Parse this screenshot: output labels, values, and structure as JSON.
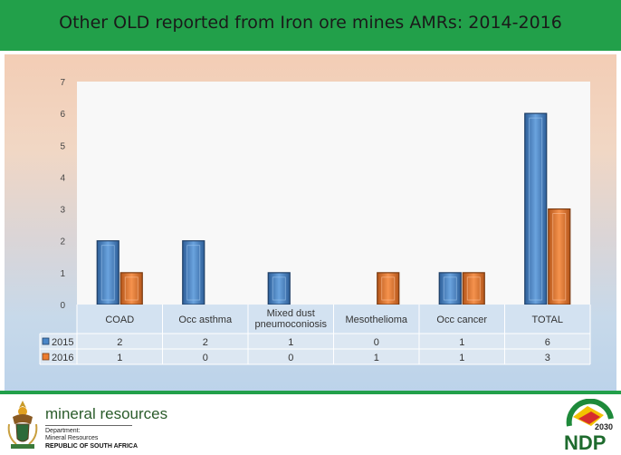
{
  "slide": {
    "title": "Other OLD reported from Iron ore mines AMRs: 2014-2016"
  },
  "chart_data": {
    "type": "bar",
    "title": "Other OLD reported from Iron ore mines AMRs: 2014-2016",
    "categories": [
      "COAD",
      "Occ asthma",
      "Mixed dust pneumoconiosis",
      "Mesothelioma",
      "Occ cancer",
      "TOTAL"
    ],
    "category_lines": [
      [
        "COAD"
      ],
      [
        "Occ asthma"
      ],
      [
        "Mixed dust",
        "pneumoconiosis"
      ],
      [
        "Mesothelioma"
      ],
      [
        "Occ cancer"
      ],
      [
        "TOTAL"
      ]
    ],
    "series": [
      {
        "name": "2015",
        "values": [
          2,
          2,
          1,
          0,
          1,
          6
        ],
        "color": "#4a86c8"
      },
      {
        "name": "2016",
        "values": [
          1,
          0,
          0,
          1,
          1,
          3
        ],
        "color": "#ed7d31"
      }
    ],
    "ylim": [
      0,
      7
    ],
    "yticks": [
      "0",
      "1",
      "2",
      "3",
      "4",
      "5",
      "6",
      "7"
    ],
    "data_table": true,
    "grid": false
  },
  "footer": {
    "dept_name": "mineral resources",
    "dept_line1": "Department:",
    "dept_line2": "Mineral Resources",
    "country": "REPUBLIC OF SOUTH AFRICA",
    "ndp_year": "2030",
    "ndp_text": "NDP"
  }
}
